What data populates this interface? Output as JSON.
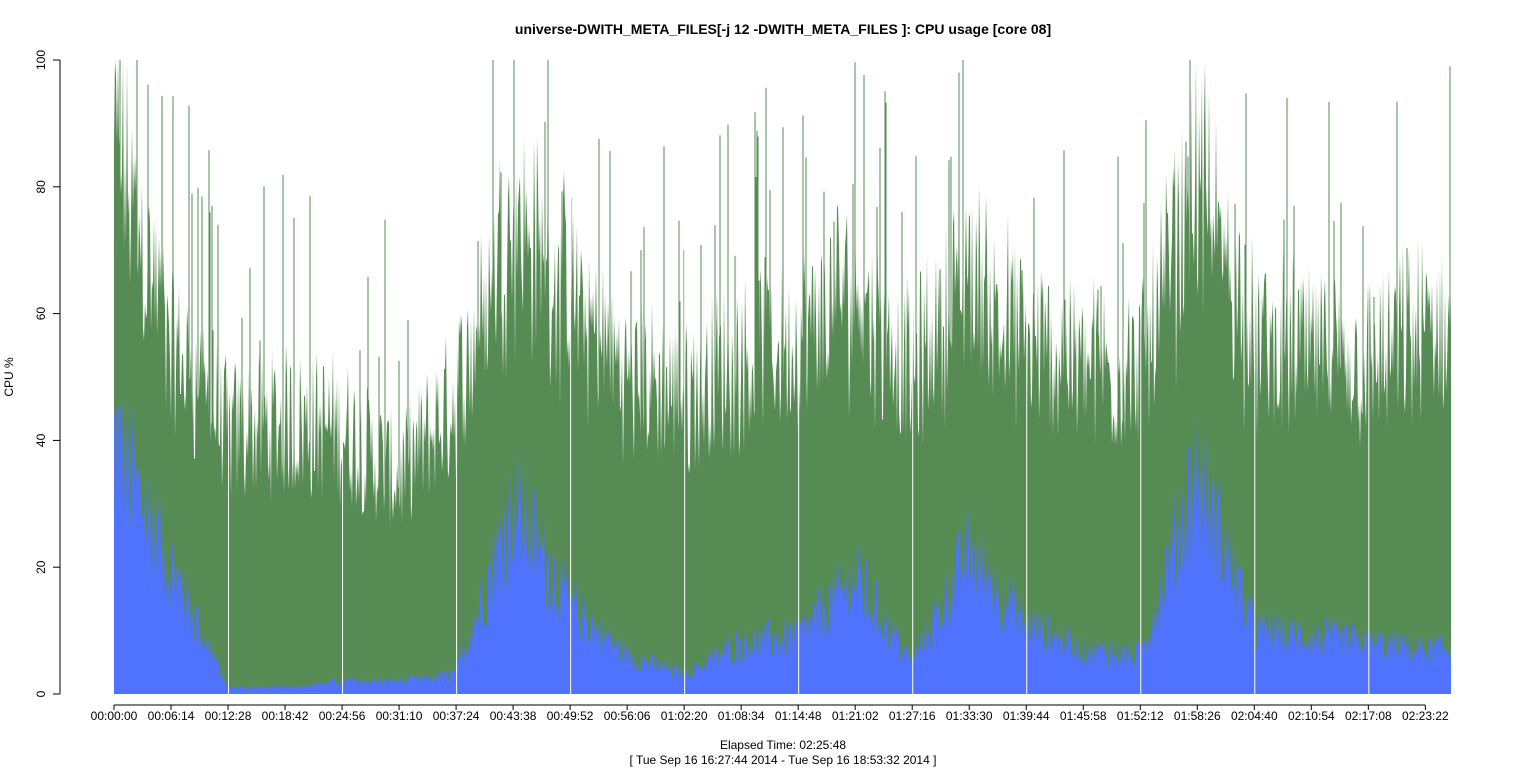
{
  "chart_data": {
    "type": "area",
    "title": "universe-DWITH_META_FILES[-j 12 -DWITH_META_FILES ]: CPU usage [core 08]",
    "ylabel": "CPU %",
    "xlabel": "Elapsed Time: 02:25:48",
    "time_range": "[ Tue Sep 16 16:27:44 2014 - Tue Sep 16 18:53:32 2014 ]",
    "stacked": true,
    "ylim": [
      0,
      100
    ],
    "yticks": [
      0,
      20,
      40,
      60,
      80,
      100
    ],
    "xlim_seconds": [
      0,
      8748
    ],
    "xticks": [
      "00:00:00",
      "00:06:14",
      "00:12:28",
      "00:18:42",
      "00:24:56",
      "00:31:10",
      "00:37:24",
      "00:43:38",
      "00:49:52",
      "00:56:06",
      "01:02:20",
      "01:08:34",
      "01:14:48",
      "01:21:02",
      "01:27:16",
      "01:33:30",
      "01:39:44",
      "01:45:58",
      "01:52:12",
      "01:58:26",
      "02:04:40",
      "02:10:54",
      "02:17:08",
      "02:23:22"
    ],
    "x": [
      "00:00:00",
      "00:06:14",
      "00:12:28",
      "00:18:42",
      "00:24:56",
      "00:31:10",
      "00:37:24",
      "00:43:38",
      "00:49:52",
      "00:56:06",
      "01:02:20",
      "01:08:34",
      "01:14:48",
      "01:21:02",
      "01:27:16",
      "01:33:30",
      "01:39:44",
      "01:45:58",
      "01:52:12",
      "01:58:26",
      "02:04:40",
      "02:10:54",
      "02:17:08",
      "02:23:22"
    ],
    "series": [
      {
        "color": "#4f73ff",
        "values": [
          40,
          20,
          1,
          1,
          2,
          2,
          3,
          30,
          14,
          6,
          3,
          8,
          9,
          18,
          5,
          22,
          11,
          7,
          6,
          35,
          10,
          9,
          8,
          7
        ]
      },
      {
        "color": "#578b54",
        "values": [
          48,
          35,
          40,
          42,
          40,
          32,
          44,
          46,
          48,
          44,
          44,
          45,
          46,
          47,
          45,
          45,
          44,
          45,
          45,
          46,
          45,
          45,
          44,
          50
        ]
      }
    ],
    "grid": false,
    "legend": "none"
  }
}
